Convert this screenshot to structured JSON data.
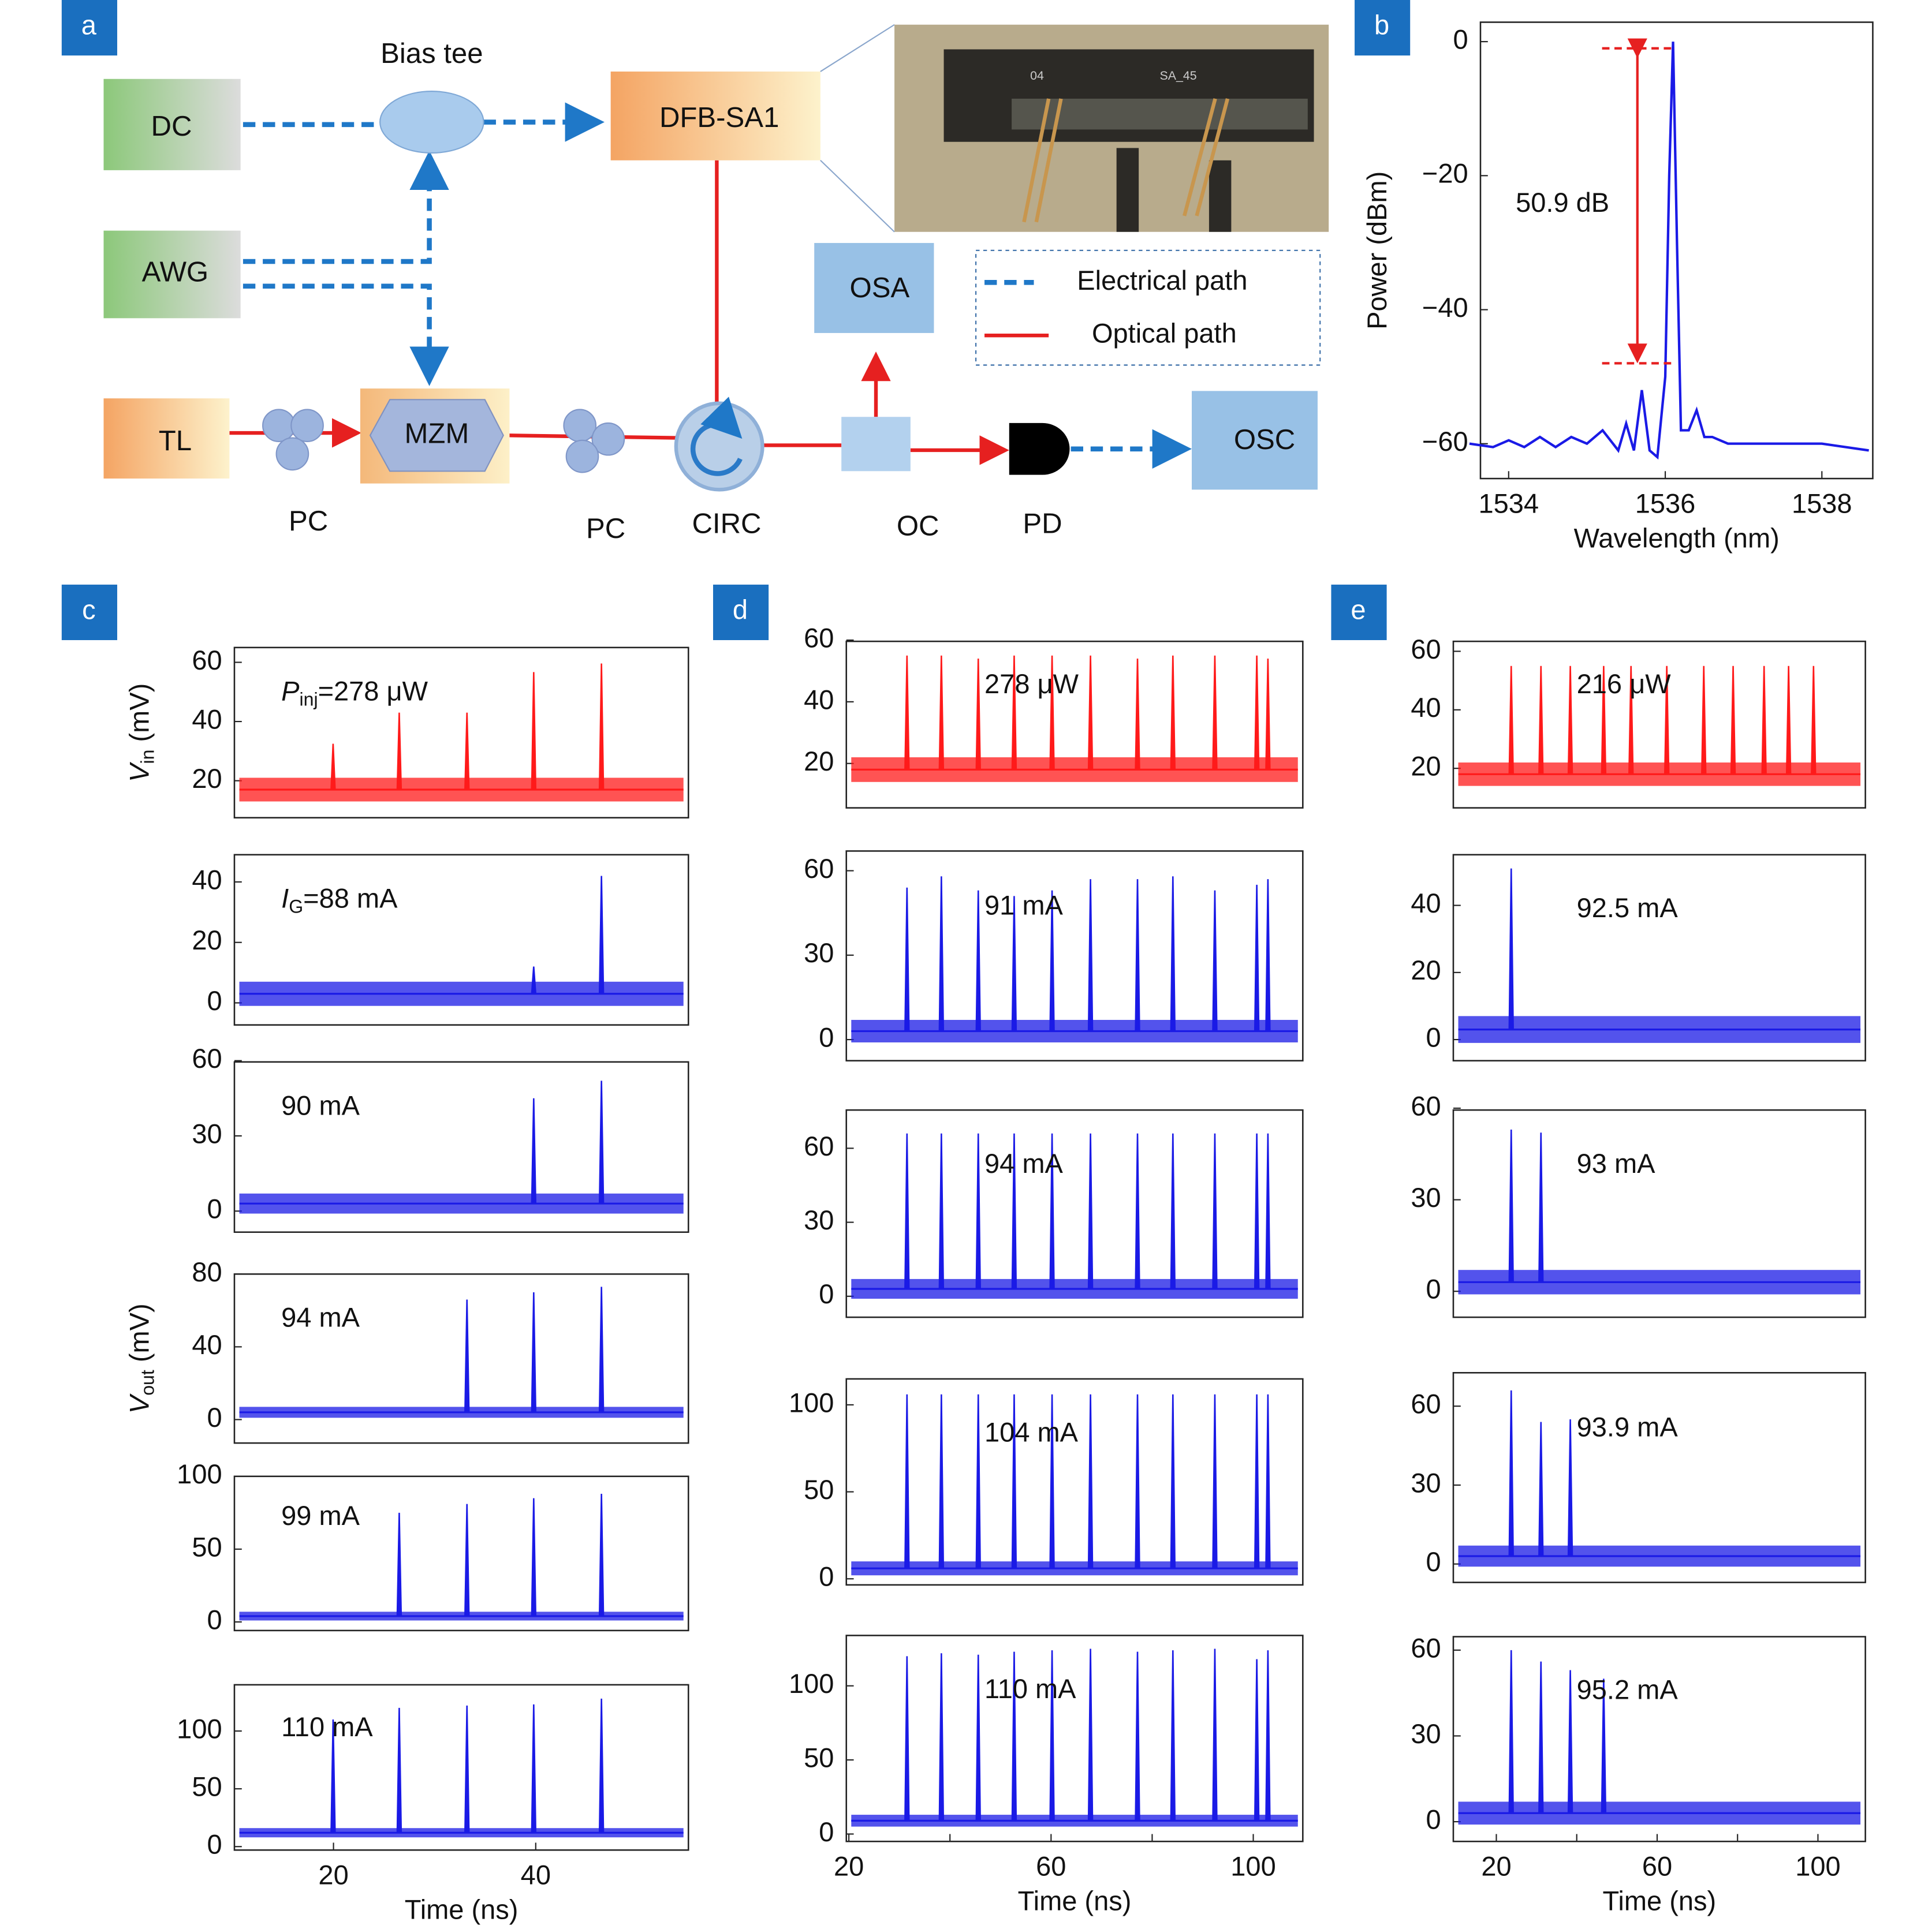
{
  "panel_labels": [
    "a",
    "b",
    "c",
    "d",
    "e"
  ],
  "diagram": {
    "nodes": [
      "DC",
      "Bias tee",
      "DFB-SA1",
      "AWG",
      "OSA",
      "TL",
      "MZM",
      "PC",
      "PC",
      "CIRC",
      "OC",
      "PD",
      "OSC"
    ],
    "photo_labels": [
      "04",
      "SA_45"
    ],
    "legend": [
      "Electrical path",
      "Optical path"
    ]
  },
  "chart_data": [
    {
      "type": "line",
      "color": "#1a1ae6",
      "x_label": "Wavelength (nm)",
      "y_label": "Power (dBm)",
      "x": [
        1533.5,
        1533.8,
        1534.0,
        1534.2,
        1534.4,
        1534.6,
        1534.8,
        1535.0,
        1535.2,
        1535.4,
        1535.5,
        1535.6,
        1535.7,
        1535.8,
        1535.9,
        1536.0,
        1536.05,
        1536.1,
        1536.15,
        1536.2,
        1536.3,
        1536.4,
        1536.5,
        1536.6,
        1536.8,
        1537.0,
        1537.5,
        1538.0,
        1538.6
      ],
      "values": [
        -60,
        -60.5,
        -59.5,
        -60.5,
        -59,
        -60.5,
        -59,
        -60,
        -58,
        -61,
        -57,
        -61,
        -52,
        -61,
        -62,
        -50,
        -20,
        0,
        -30,
        -58,
        -58,
        -55,
        -59,
        -59,
        -60,
        -60,
        -60,
        -60,
        -61
      ],
      "xlim": [
        1533.64,
        1538.65
      ],
      "ylim": [
        -65.2,
        2.9
      ],
      "xticks": [
        1534,
        1536,
        1538
      ],
      "yticks": [
        0,
        {
          "value": -20,
          "label": "−20"
        },
        {
          "value": -40,
          "label": "−40"
        },
        {
          "value": -60,
          "label": "−60"
        }
      ],
      "annotation": "50.9 dB",
      "marker_levels": [
        -1,
        -48
      ],
      "marker_color": "#e62020"
    },
    {
      "type": "spike_train",
      "color": "#ff1a1a",
      "xlim": [
        10.2,
        55.1
      ],
      "ylim": [
        7.5,
        65
      ],
      "yticks": [
        20,
        40,
        60
      ],
      "x": [
        19.96,
        26.5,
        33.2,
        39.8,
        46.5
      ],
      "values": [
        32.5,
        43,
        43,
        56.7,
        59.6
      ],
      "baseline": 17,
      "noise": 4,
      "annotation": {
        "symbol": "P",
        "subscript": "inj",
        "text": "=278 μW"
      },
      "annotation_color": "#000000",
      "y_label": {
        "symbol": "V",
        "subscript": "in",
        "text": " (mV)"
      }
    },
    {
      "type": "spike_train",
      "color": "#1a1ae6",
      "xlim": [
        10.2,
        55.1
      ],
      "ylim": [
        -7.3,
        49
      ],
      "yticks": [
        0,
        20,
        40
      ],
      "x": [
        39.8,
        46.5
      ],
      "values": [
        12,
        42
      ],
      "baseline": 3,
      "noise": 4,
      "annotation": {
        "symbol": "I",
        "subscript": "G",
        "text": "=88 mA"
      },
      "annotation_color": "#ff1a1a"
    },
    {
      "type": "spike_train",
      "color": "#1a1ae6",
      "xlim": [
        10.2,
        55.1
      ],
      "ylim": [
        -8.4,
        59.5
      ],
      "yticks": [
        0,
        30,
        60
      ],
      "x": [
        39.8,
        46.5
      ],
      "values": [
        45,
        52
      ],
      "baseline": 3,
      "noise": 4,
      "annotation": "90 mA",
      "annotation_color": "#ff1a1a"
    },
    {
      "type": "spike_train",
      "color": "#1a1ae6",
      "xlim": [
        10.2,
        55.1
      ],
      "ylim": [
        -12.9,
        80
      ],
      "yticks": [
        0,
        40,
        80
      ],
      "x": [
        33.2,
        39.8,
        46.5
      ],
      "values": [
        66,
        70,
        73
      ],
      "baseline": 4,
      "noise": 3,
      "annotation": "94 mA",
      "annotation_color": "#ff1a1a",
      "y_label": {
        "symbol": "V",
        "subscript": "out",
        "text": " (mV)"
      }
    },
    {
      "type": "spike_train",
      "color": "#1a1ae6",
      "xlim": [
        10.2,
        55.1
      ],
      "ylim": [
        -5.9,
        100
      ],
      "yticks": [
        0,
        50,
        100
      ],
      "x": [
        26.5,
        33.2,
        39.8,
        46.5
      ],
      "values": [
        75,
        81,
        85,
        88
      ],
      "baseline": 4,
      "noise": 3,
      "annotation": "99 mA",
      "annotation_color": "#ff1a1a"
    },
    {
      "type": "spike_train",
      "color": "#1a1ae6",
      "xlim": [
        10.2,
        55.1
      ],
      "ylim": [
        -3,
        140
      ],
      "yticks": [
        0,
        50,
        100
      ],
      "xticks": [
        20,
        40
      ],
      "x_label": "Time (ns)",
      "x": [
        19.96,
        26.5,
        33.2,
        39.8,
        46.5
      ],
      "values": [
        110,
        120,
        122,
        123,
        128
      ],
      "baseline": 12,
      "noise": 4,
      "annotation": "110 mA",
      "annotation_color": "#ff1a1a"
    },
    {
      "type": "spike_train",
      "color": "#ff1a1a",
      "xlim": [
        19.5,
        109.8
      ],
      "ylim": [
        5.6,
        59.6
      ],
      "yticks": [
        20,
        40,
        60
      ],
      "x": [
        31.5,
        38.3,
        45.6,
        52.7,
        60.2,
        67.8,
        77.1,
        84.1,
        92.4,
        100.7,
        102.9
      ],
      "values": [
        55,
        55,
        54,
        55,
        55,
        55,
        54,
        55,
        55,
        55,
        54
      ],
      "baseline": 18,
      "noise": 4,
      "annotation": "278 μW",
      "annotation_color": "#000000"
    },
    {
      "type": "spike_train",
      "color": "#1a1ae6",
      "xlim": [
        19.5,
        109.8
      ],
      "ylim": [
        -7.5,
        67
      ],
      "yticks": [
        0,
        30,
        60
      ],
      "x": [
        31.5,
        38.3,
        45.6,
        52.7,
        60.2,
        67.8,
        77.1,
        84.1,
        92.4,
        100.7,
        102.9
      ],
      "values": [
        54,
        58,
        53,
        51,
        53,
        57,
        57,
        58,
        53,
        55,
        57
      ],
      "baseline": 3,
      "noise": 4,
      "annotation": "91 mA",
      "annotation_color": "#ff1a1a"
    },
    {
      "type": "spike_train",
      "color": "#1a1ae6",
      "xlim": [
        19.5,
        109.8
      ],
      "ylim": [
        -8.5,
        75.5
      ],
      "yticks": [
        0,
        30,
        60
      ],
      "x": [
        31.5,
        38.3,
        45.6,
        52.7,
        60.2,
        67.8,
        77.1,
        84.1,
        92.4,
        100.7,
        102.9
      ],
      "values": [
        66,
        66,
        66,
        66,
        66,
        66,
        66,
        66,
        66,
        66,
        66
      ],
      "baseline": 3,
      "noise": 4,
      "annotation": "94 mA",
      "annotation_color": "#ff1a1a"
    },
    {
      "type": "spike_train",
      "color": "#1a1ae6",
      "xlim": [
        19.5,
        109.8
      ],
      "ylim": [
        -3.5,
        114.9
      ],
      "yticks": [
        0,
        50,
        100
      ],
      "x": [
        31.5,
        38.3,
        45.6,
        52.7,
        60.2,
        67.8,
        77.1,
        84.1,
        92.4,
        100.7,
        102.9
      ],
      "values": [
        106,
        106,
        106,
        106,
        106,
        106,
        106,
        106,
        106,
        106,
        106
      ],
      "baseline": 6,
      "noise": 4,
      "annotation": "104 mA",
      "annotation_color": "#ff1a1a"
    },
    {
      "type": "spike_train",
      "color": "#1a1ae6",
      "xlim": [
        19.5,
        109.8
      ],
      "ylim": [
        -5,
        134
      ],
      "yticks": [
        0,
        50,
        100
      ],
      "xticks": [
        20,
        60,
        100
      ],
      "minor_xticks": [
        40,
        80
      ],
      "x_label": "Time (ns)",
      "x": [
        31.5,
        38.3,
        45.6,
        52.7,
        60.2,
        67.8,
        77.1,
        84.1,
        92.4,
        100.7,
        102.9
      ],
      "values": [
        120,
        122,
        121,
        123,
        124,
        125,
        123,
        124,
        125,
        118,
        124
      ],
      "baseline": 9,
      "noise": 4,
      "annotation": "110 mA",
      "annotation_color": "#ff1a1a"
    },
    {
      "type": "spike_train",
      "color": "#ff1a1a",
      "xlim": [
        9.3,
        111.8
      ],
      "ylim": [
        6.5,
        63.4
      ],
      "yticks": [
        20,
        40,
        60
      ],
      "x": [
        23.7,
        31.1,
        38.4,
        46.7,
        53.5,
        62.4,
        71.6,
        78.9,
        86.6,
        92.7,
        98.9
      ],
      "values": [
        55,
        55,
        55,
        55,
        55,
        55,
        55,
        55,
        55,
        55,
        55
      ],
      "baseline": 18,
      "noise": 4,
      "annotation": "216 μW",
      "annotation_color": "#000000"
    },
    {
      "type": "spike_train",
      "color": "#1a1ae6",
      "xlim": [
        9.3,
        111.8
      ],
      "ylim": [
        -6.3,
        55.1
      ],
      "yticks": [
        0,
        20,
        40
      ],
      "x": [
        23.7
      ],
      "values": [
        51
      ],
      "baseline": 3,
      "noise": 4,
      "annotation": "92.5 mA",
      "annotation_color": "#ff1a1a"
    },
    {
      "type": "spike_train",
      "color": "#1a1ae6",
      "xlim": [
        9.3,
        111.8
      ],
      "ylim": [
        -8.5,
        59.4
      ],
      "yticks": [
        0,
        30,
        60
      ],
      "x": [
        23.7,
        31.1
      ],
      "values": [
        53,
        52
      ],
      "baseline": 3,
      "noise": 4,
      "annotation": "93 mA",
      "annotation_color": "#ff1a1a"
    },
    {
      "type": "spike_train",
      "color": "#1a1ae6",
      "xlim": [
        9.3,
        111.8
      ],
      "ylim": [
        -7,
        72.7
      ],
      "yticks": [
        0,
        30,
        60
      ],
      "x": [
        23.7,
        31.1,
        38.4
      ],
      "values": [
        66,
        54,
        55
      ],
      "baseline": 3,
      "noise": 4,
      "annotation": "93.9 mA",
      "annotation_color": "#ff1a1a"
    },
    {
      "type": "spike_train",
      "color": "#1a1ae6",
      "xlim": [
        9.3,
        111.8
      ],
      "ylim": [
        -6.9,
        64.7
      ],
      "yticks": [
        0,
        30,
        60
      ],
      "xticks": [
        20,
        60,
        100
      ],
      "minor_xticks": [
        40,
        80
      ],
      "x_label": "Time (ns)",
      "x": [
        23.7,
        31.1,
        38.4,
        46.7
      ],
      "values": [
        60,
        56,
        53,
        50
      ],
      "baseline": 3,
      "noise": 4,
      "annotation": "95.2 mA",
      "annotation_color": "#ff1a1a"
    }
  ]
}
